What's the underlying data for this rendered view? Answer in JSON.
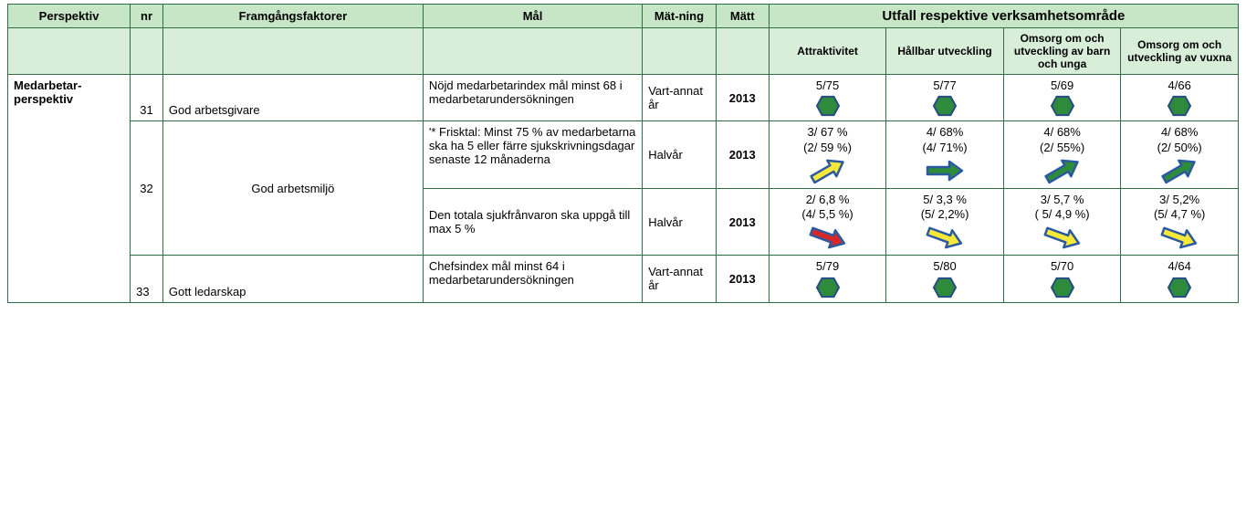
{
  "headers": {
    "perspektiv": "Perspektiv",
    "nr": "nr",
    "framgang": "Framgångsfaktorer",
    "mal": "Mål",
    "matning": "Mät-ning",
    "matt": "Mätt",
    "utfall": "Utfall respektive verksamhetsområde",
    "sub": {
      "attr": "Attraktivitet",
      "hallbar": "Hållbar utveckling",
      "omsorg_barn": "Omsorg om och utveckling av barn och unga",
      "omsorg_vuxna": "Omsorg om och utveckling av vuxna"
    }
  },
  "perspektiv_label": "Medarbetar-perspektiv",
  "rows": [
    {
      "nr": "31",
      "framgang": "God arbetsgivare",
      "mal": "Nöjd medarbetarindex mål minst 68 i medarbetarundersökningen",
      "matning": "Vart-annat år",
      "matt": "2013",
      "cells": [
        {
          "l1": "5/75",
          "l2": "",
          "icon": "hex"
        },
        {
          "l1": "5/77",
          "l2": "",
          "icon": "hex"
        },
        {
          "l1": "5/69",
          "l2": "",
          "icon": "hex"
        },
        {
          "l1": "4/66",
          "l2": "",
          "icon": "hex"
        }
      ]
    },
    {
      "nr": "32",
      "framgang": "God arbetsmiljö",
      "mal": "'* Frisktal: Minst 75 % av medarbetarna ska ha 5 eller färre sjukskrivningsdagar senaste 12 månaderna",
      "matning": "Halvår",
      "matt": "2013",
      "cells": [
        {
          "l1": "3/ 67 %",
          "l2": "(2/ 59 %)",
          "icon": "arrow-up-yellow"
        },
        {
          "l1": "4/ 68%",
          "l2": "(4/ 71%)",
          "icon": "arrow-flat-green"
        },
        {
          "l1": "4/ 68%",
          "l2": "(2/ 55%)",
          "icon": "arrow-up-green"
        },
        {
          "l1": "4/ 68%",
          "l2": "(2/ 50%)",
          "icon": "arrow-up-green"
        }
      ]
    },
    {
      "nr": "",
      "framgang": "",
      "mal": "Den totala sjukfrånvaron ska uppgå till max 5 %",
      "matning": "Halvår",
      "matt": "2013",
      "cells": [
        {
          "l1": "2/ 6,8 %",
          "l2": "(4/ 5,5 %)",
          "icon": "arrow-down-red"
        },
        {
          "l1": "5/ 3,3 %",
          "l2": "(5/ 2,2%)",
          "icon": "arrow-down-yellow"
        },
        {
          "l1": "3/ 5,7 %",
          "l2": "( 5/ 4,9 %)",
          "icon": "arrow-down-yellow"
        },
        {
          "l1": "3/ 5,2%",
          "l2": "(5/ 4,7 %)",
          "icon": "arrow-down-yellow"
        }
      ]
    },
    {
      "nr": "33",
      "framgang": "Gott ledarskap",
      "mal": "Chefsindex mål minst 64 i medarbetarundersökningen",
      "matning": "Vart-annat år",
      "matt": "2013",
      "cells": [
        {
          "l1": "5/79",
          "l2": "",
          "icon": "hex"
        },
        {
          "l1": "5/80",
          "l2": "",
          "icon": "hex"
        },
        {
          "l1": "5/70",
          "l2": "",
          "icon": "hex"
        },
        {
          "l1": "4/64",
          "l2": "",
          "icon": "hex"
        }
      ]
    }
  ],
  "icons": {
    "hex": {
      "fill": "#2e8b3c",
      "stroke": "#264c88"
    },
    "arrows": {
      "arrow-up-yellow": {
        "angle": -30,
        "fill": "#f7e83a"
      },
      "arrow-up-green": {
        "angle": -30,
        "fill": "#2e8b3c"
      },
      "arrow-flat-green": {
        "angle": 0,
        "fill": "#2e8b3c"
      },
      "arrow-down-yellow": {
        "angle": 20,
        "fill": "#f7e83a"
      },
      "arrow-down-red": {
        "angle": 20,
        "fill": "#d62828"
      }
    },
    "arrow_stroke": "#2b5aa0"
  }
}
